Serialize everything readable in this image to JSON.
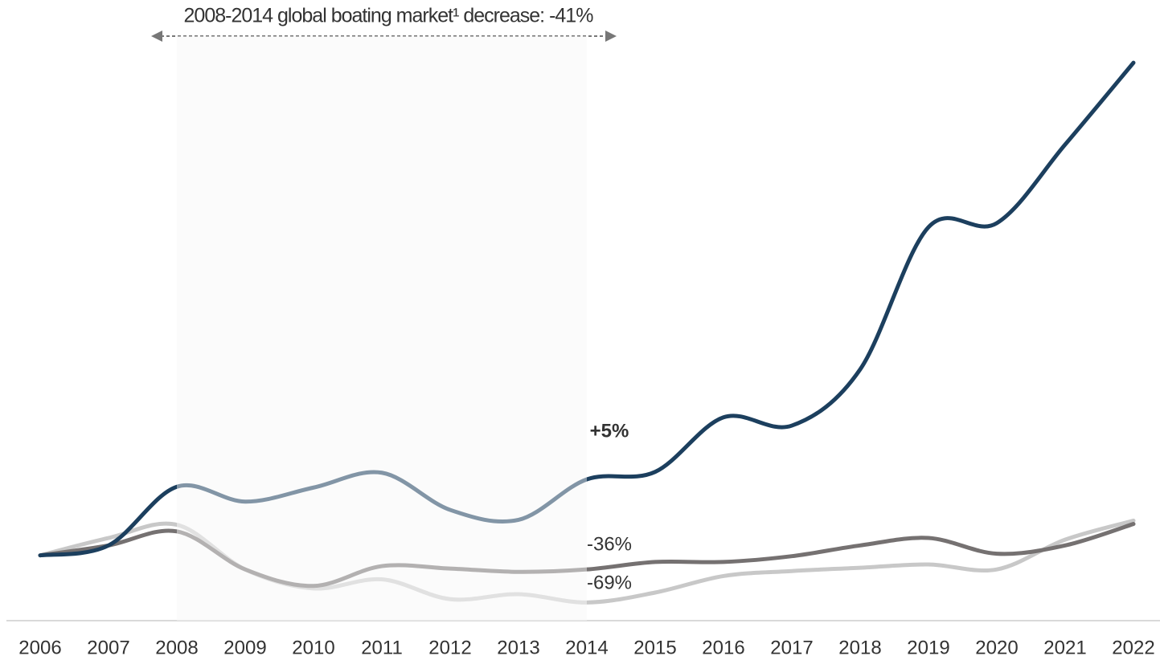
{
  "chart_data": {
    "type": "line",
    "title": "2008-2014 global boating market¹ decrease: -41%",
    "x": [
      2006,
      2007,
      2008,
      2009,
      2010,
      2011,
      2012,
      2013,
      2014,
      2015,
      2016,
      2017,
      2018,
      2019,
      2020,
      2021,
      2022
    ],
    "xlim": [
      2006,
      2022
    ],
    "ylim": [
      21,
      700
    ],
    "series": [
      {
        "color": "#1c3f5e",
        "values": [
          100,
          112,
          183,
          165,
          182,
          200,
          155,
          143,
          192,
          201,
          267,
          257,
          325,
          497,
          502,
          597,
          696
        ]
      },
      {
        "color": "#757171",
        "values": [
          100,
          112,
          129,
          83,
          63,
          87,
          84,
          80,
          83,
          92,
          92,
          99,
          112,
          121,
          102,
          112,
          138
        ]
      },
      {
        "color": "#c8c8c8",
        "values": [
          100,
          121,
          137,
          83,
          60,
          71,
          47,
          53,
          43,
          55,
          75,
          81,
          85,
          89,
          83,
          119,
          142
        ]
      }
    ],
    "annotations": [
      "+5%",
      "-36%",
      "-69%"
    ],
    "grid": false
  }
}
